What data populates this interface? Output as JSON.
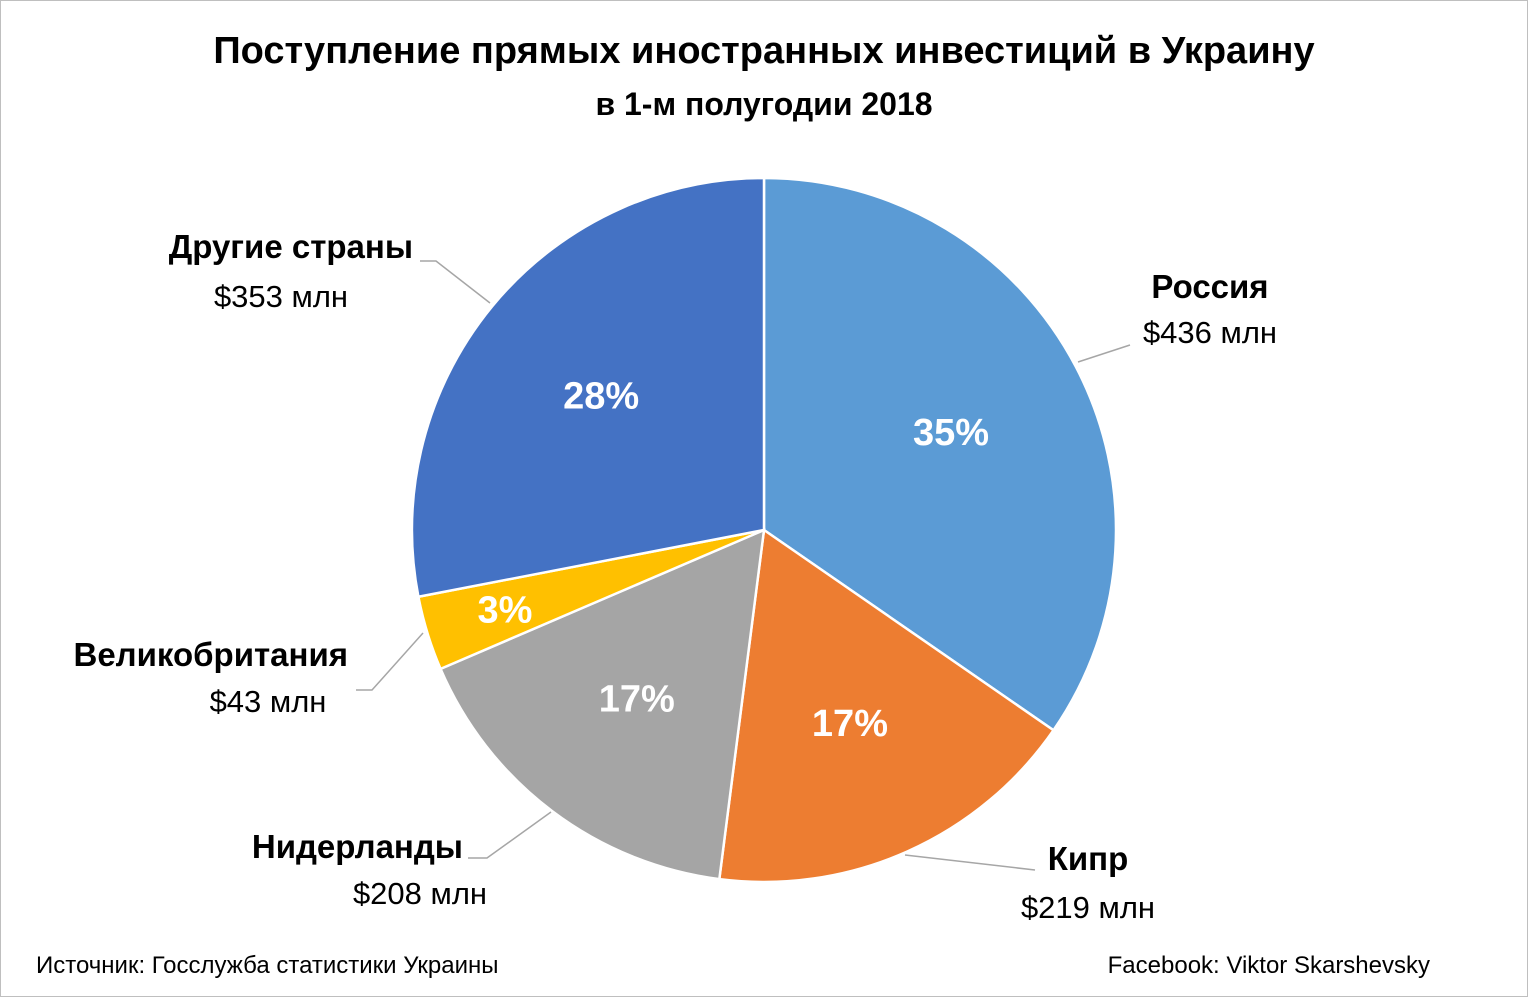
{
  "title": "Поступление прямых иностранных инвестиций в Украину",
  "subtitle": "в 1-м полугодии 2018",
  "footer": {
    "source": "Источник: Госслужба статистики Украины",
    "author": "Facebook: Viktor Skarshevsky"
  },
  "chart_data": {
    "type": "pie",
    "title": "Поступление прямых иностранных инвестиций в Украину",
    "subtitle": "в 1-м полугодии 2018",
    "slices": [
      {
        "name": "Россия",
        "value": 436,
        "value_label": "$436 млн",
        "percent_label": "35%",
        "color": "#5B9BD5"
      },
      {
        "name": "Кипр",
        "value": 219,
        "value_label": "$219 млн",
        "percent_label": "17%",
        "color": "#ED7D31"
      },
      {
        "name": "Нидерланды",
        "value": 208,
        "value_label": "$208 млн",
        "percent_label": "17%",
        "color": "#A5A5A5"
      },
      {
        "name": "Великобритания",
        "value": 43,
        "value_label": "$43 млн",
        "percent_label": "3%",
        "color": "#FFC000"
      },
      {
        "name": "Другие страны",
        "value": 353,
        "value_label": "$353 млн",
        "percent_label": "28%",
        "color": "#4472C4"
      }
    ],
    "start_angle_deg": 0,
    "direction": "clockwise",
    "legend": "none"
  }
}
